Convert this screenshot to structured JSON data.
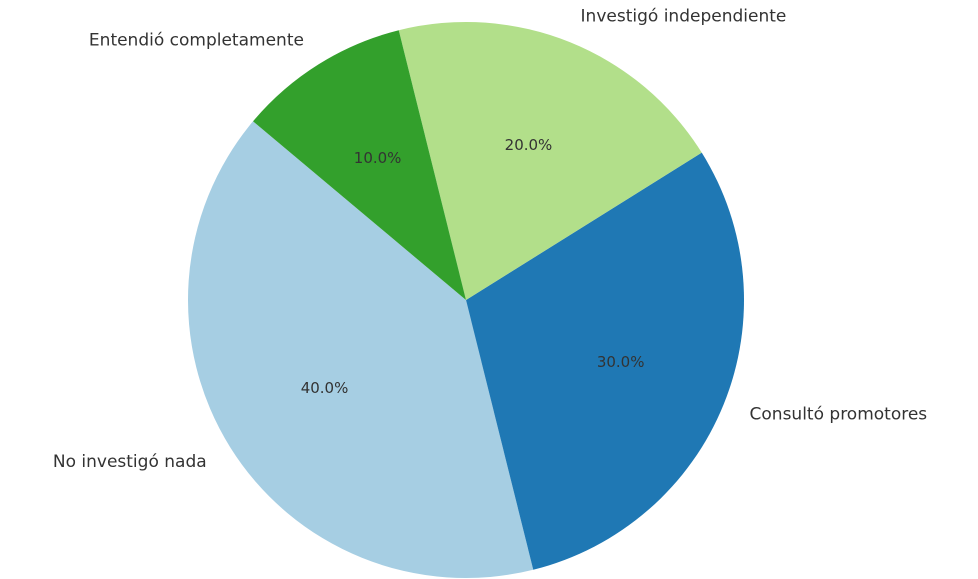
{
  "chart_data": {
    "type": "pie",
    "categories": [
      "No investigó nada",
      "Consultó promotores",
      "Investigó independiente",
      "Entendió completamente"
    ],
    "values": [
      40,
      30,
      20,
      10
    ],
    "value_labels": [
      "40.0%",
      "30.0%",
      "20.0%",
      "10.0%"
    ],
    "colors": [
      "#a6cee3",
      "#1f78b4",
      "#b2df8a",
      "#33a02c"
    ],
    "startangle": 140,
    "counterclock": true
  }
}
